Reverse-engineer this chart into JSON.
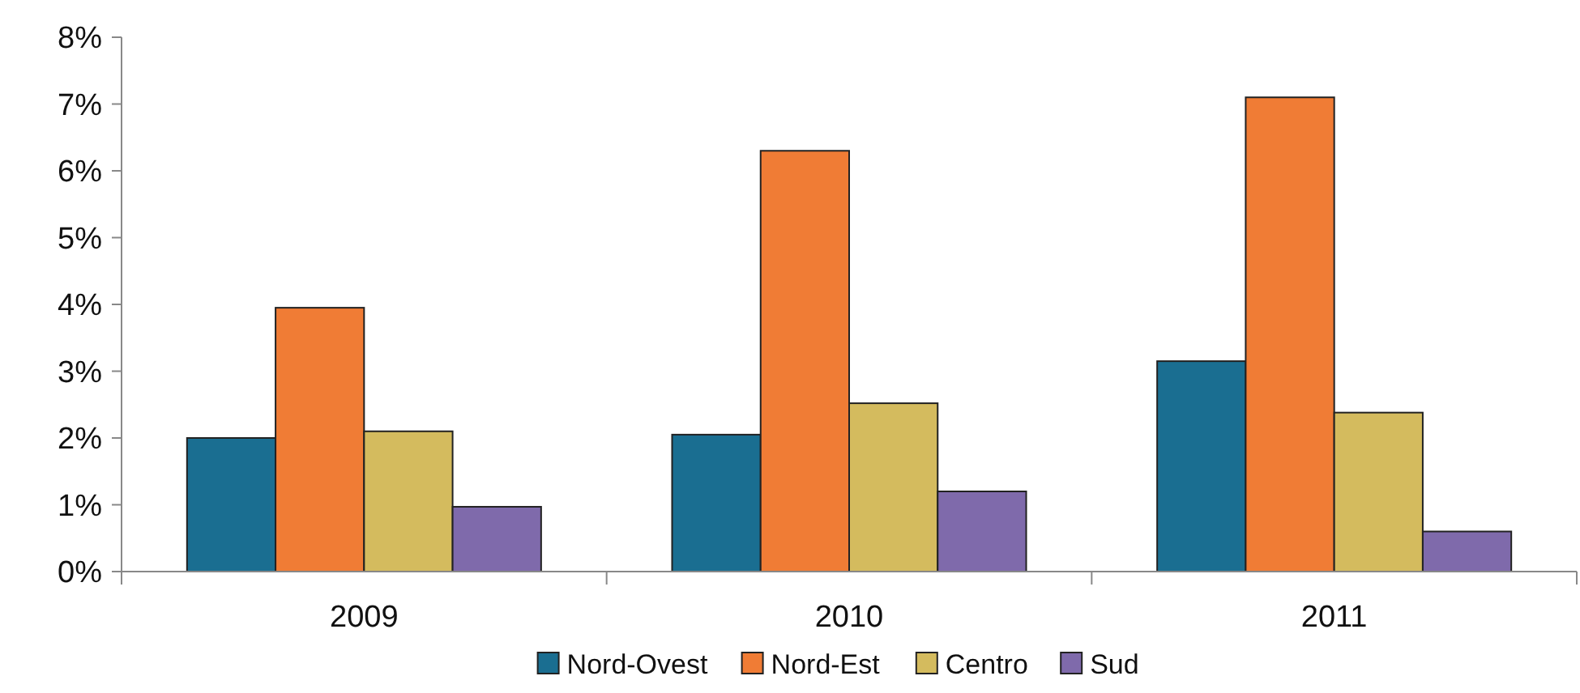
{
  "chart_data": {
    "type": "bar",
    "categories": [
      "2009",
      "2010",
      "2011"
    ],
    "series": [
      {
        "name": "Nord-Ovest",
        "color": "#1a6e91",
        "values": [
          2.0,
          2.05,
          3.15
        ]
      },
      {
        "name": "Nord-Est",
        "color": "#f07c35",
        "values": [
          3.95,
          6.3,
          7.1
        ]
      },
      {
        "name": "Centro",
        "color": "#d4bb5e",
        "values": [
          2.1,
          2.52,
          2.38
        ]
      },
      {
        "name": "Sud",
        "color": "#7f6aab",
        "values": [
          0.97,
          1.2,
          0.6
        ]
      }
    ],
    "ylim": [
      0,
      8
    ],
    "yticks": [
      {
        "value": 0,
        "label": "0%"
      },
      {
        "value": 1,
        "label": "1%"
      },
      {
        "value": 2,
        "label": "2%"
      },
      {
        "value": 3,
        "label": "3%"
      },
      {
        "value": 4,
        "label": "4%"
      },
      {
        "value": 5,
        "label": "5%"
      },
      {
        "value": 6,
        "label": "6%"
      },
      {
        "value": 7,
        "label": "7%"
      },
      {
        "value": 8,
        "label": "8%"
      }
    ],
    "grid": false,
    "legend": "bottom"
  }
}
